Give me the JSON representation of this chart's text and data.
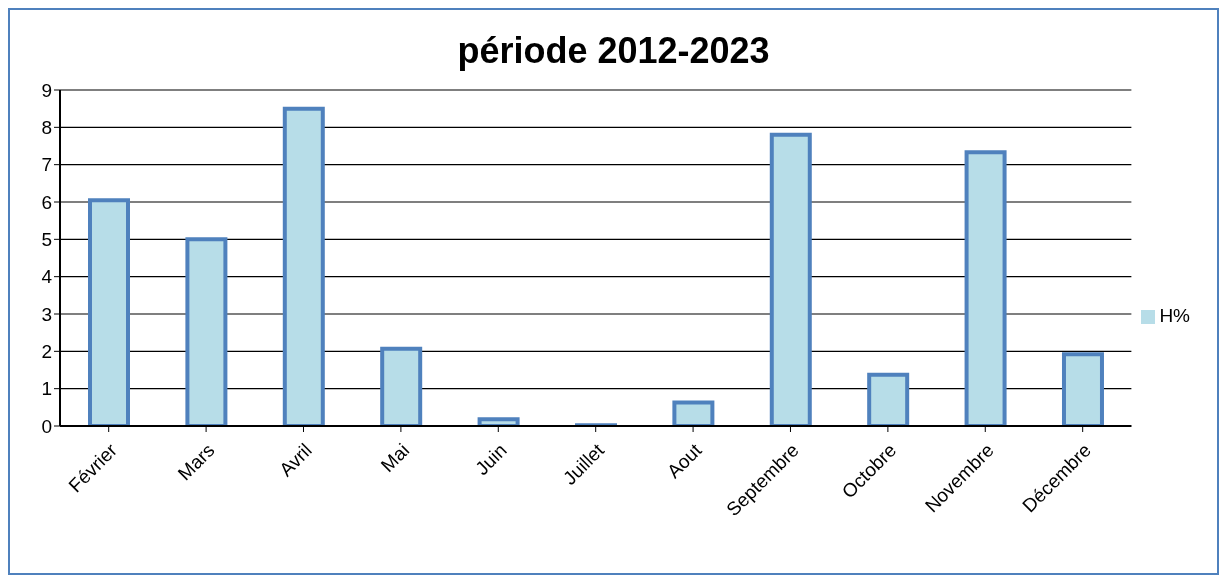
{
  "chart_data": {
    "type": "bar",
    "title": "période 2012-2023",
    "categories": [
      "Février",
      "Mars",
      "Avril",
      "Mai",
      "Juin",
      "Juillet",
      "Aout",
      "Septembre",
      "Octobre",
      "Novembre",
      "Décembre"
    ],
    "series": [
      {
        "name": "H%",
        "color": "#b7dde8",
        "values": [
          6.05,
          5.0,
          8.5,
          2.07,
          0.18,
          0.02,
          0.63,
          7.8,
          1.37,
          7.33,
          1.92
        ]
      }
    ],
    "ylim": [
      0,
      9
    ],
    "yticks": [
      0,
      1,
      2,
      3,
      4,
      5,
      6,
      7,
      8,
      9
    ],
    "grid": "y",
    "legend": "right"
  }
}
